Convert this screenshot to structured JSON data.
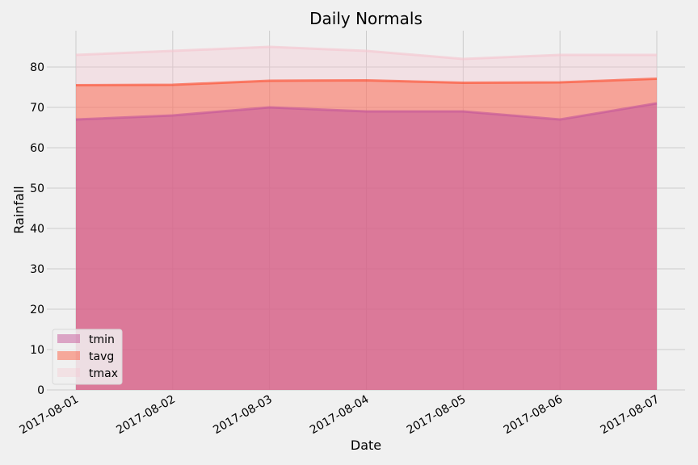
{
  "chart_data": {
    "type": "area",
    "title": "Daily Normals",
    "xlabel": "Date",
    "ylabel": "Rainfall",
    "x": [
      "2017-08-01",
      "2017-08-02",
      "2017-08-03",
      "2017-08-04",
      "2017-08-05",
      "2017-08-06",
      "2017-08-07"
    ],
    "ylim": [
      0,
      89
    ],
    "yticks": [
      0,
      10,
      20,
      30,
      40,
      50,
      60,
      70,
      80
    ],
    "grid": true,
    "stacked": false,
    "legend_position": "lower-left",
    "series": [
      {
        "name": "tmin",
        "values": [
          67.0,
          68.0,
          70.0,
          69.0,
          69.0,
          67.0,
          71.0
        ],
        "color": "#c5579a"
      },
      {
        "name": "tavg",
        "values": [
          75.5,
          75.6,
          76.6,
          76.7,
          76.1,
          76.2,
          77.1
        ],
        "color": "#fc4f30"
      },
      {
        "name": "tmax",
        "values": [
          83.0,
          84.0,
          85.0,
          84.0,
          82.0,
          83.0,
          83.0
        ],
        "color": "#f5c6cf"
      }
    ]
  }
}
